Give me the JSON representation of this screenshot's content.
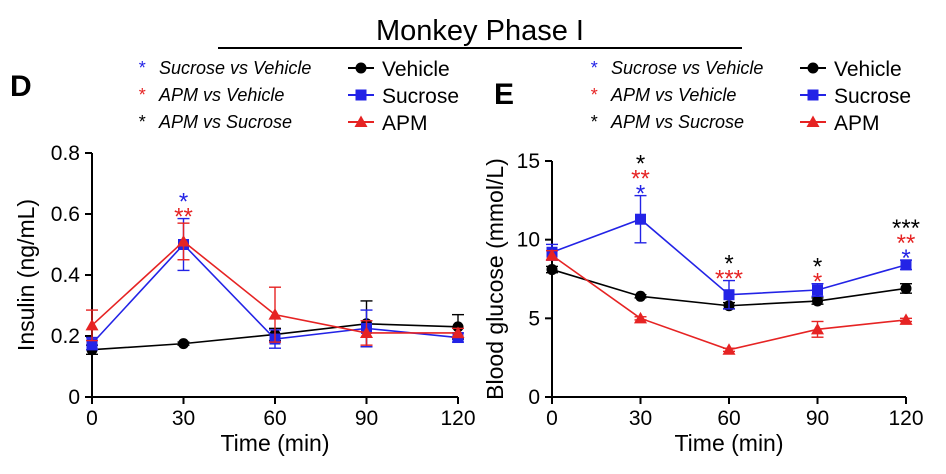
{
  "figure": {
    "title": "Monkey Phase I",
    "significance_key": [
      {
        "label": "Sucrose vs Vehicle",
        "color": "#2323e6"
      },
      {
        "label": "APM vs Vehicle",
        "color": "#e62323"
      },
      {
        "label": "APM vs Sucrose",
        "color": "#000000"
      }
    ]
  },
  "chart_data": [
    {
      "panel": "D",
      "type": "line",
      "xlabel": "Time (min)",
      "ylabel": "Insulin (ng/mL)",
      "x": [
        0,
        30,
        60,
        90,
        120
      ],
      "xticks": [
        "0",
        "30",
        "60",
        "90",
        "120"
      ],
      "xlim": [
        0,
        120
      ],
      "ylim": [
        0,
        0.8
      ],
      "yticks": [
        "0",
        "0.2",
        "0.4",
        "0.6",
        "0.8"
      ],
      "legend_position": "top-right",
      "series": [
        {
          "name": "Vehicle",
          "color": "#000000",
          "marker": "circle",
          "values": [
            0.155,
            0.175,
            0.205,
            0.24,
            0.23
          ],
          "err": [
            0.015,
            0.005,
            0.02,
            0.075,
            0.04
          ]
        },
        {
          "name": "Sucrose",
          "color": "#2323e6",
          "marker": "square",
          "values": [
            0.175,
            0.5,
            0.19,
            0.225,
            0.195
          ],
          "err": [
            0.02,
            0.085,
            0.03,
            0.06,
            0.015
          ]
        },
        {
          "name": "APM",
          "color": "#e62323",
          "marker": "triangle",
          "values": [
            0.235,
            0.51,
            0.27,
            0.21,
            0.21
          ],
          "err": [
            0.05,
            0.06,
            0.09,
            0.04,
            0.015
          ]
        }
      ],
      "annotations": [
        {
          "x": 30,
          "lines": [
            {
              "text": "*",
              "color": "#2323e6"
            },
            {
              "text": "**",
              "color": "#e62323"
            }
          ]
        }
      ]
    },
    {
      "panel": "E",
      "type": "line",
      "xlabel": "Time (min)",
      "ylabel": "Blood glucose (mmol/L)",
      "x": [
        0,
        30,
        60,
        90,
        120
      ],
      "xticks": [
        "0",
        "30",
        "60",
        "90",
        "120"
      ],
      "xlim": [
        0,
        120
      ],
      "ylim": [
        0,
        15
      ],
      "yticks": [
        "0",
        "5",
        "10",
        "15"
      ],
      "legend_position": "top-right",
      "series": [
        {
          "name": "Vehicle",
          "color": "#000000",
          "marker": "circle",
          "values": [
            8.1,
            6.4,
            5.8,
            6.1,
            6.9
          ],
          "err": [
            0.2,
            0.1,
            0.2,
            0.2,
            0.3
          ]
        },
        {
          "name": "Sucrose",
          "color": "#2323e6",
          "marker": "square",
          "values": [
            9.2,
            11.3,
            6.5,
            6.8,
            8.4
          ],
          "err": [
            0.5,
            1.5,
            0.9,
            0.4,
            0.3
          ]
        },
        {
          "name": "APM",
          "color": "#e62323",
          "marker": "triangle",
          "values": [
            9.0,
            5.0,
            3.0,
            4.3,
            4.9
          ],
          "err": [
            0.3,
            0.1,
            0.1,
            0.5,
            0.1
          ]
        }
      ],
      "annotations": [
        {
          "x": 30,
          "lines": [
            {
              "text": "*",
              "color": "#000000"
            },
            {
              "text": "**",
              "color": "#e62323"
            },
            {
              "text": "*",
              "color": "#2323e6"
            }
          ]
        },
        {
          "x": 60,
          "lines": [
            {
              "text": "*",
              "color": "#000000"
            },
            {
              "text": "***",
              "color": "#e62323"
            }
          ]
        },
        {
          "x": 90,
          "lines": [
            {
              "text": "*",
              "color": "#000000"
            },
            {
              "text": "*",
              "color": "#e62323"
            }
          ]
        },
        {
          "x": 120,
          "lines": [
            {
              "text": "***",
              "color": "#000000"
            },
            {
              "text": "**",
              "color": "#e62323"
            },
            {
              "text": "*",
              "color": "#2323e6"
            }
          ]
        }
      ]
    }
  ]
}
